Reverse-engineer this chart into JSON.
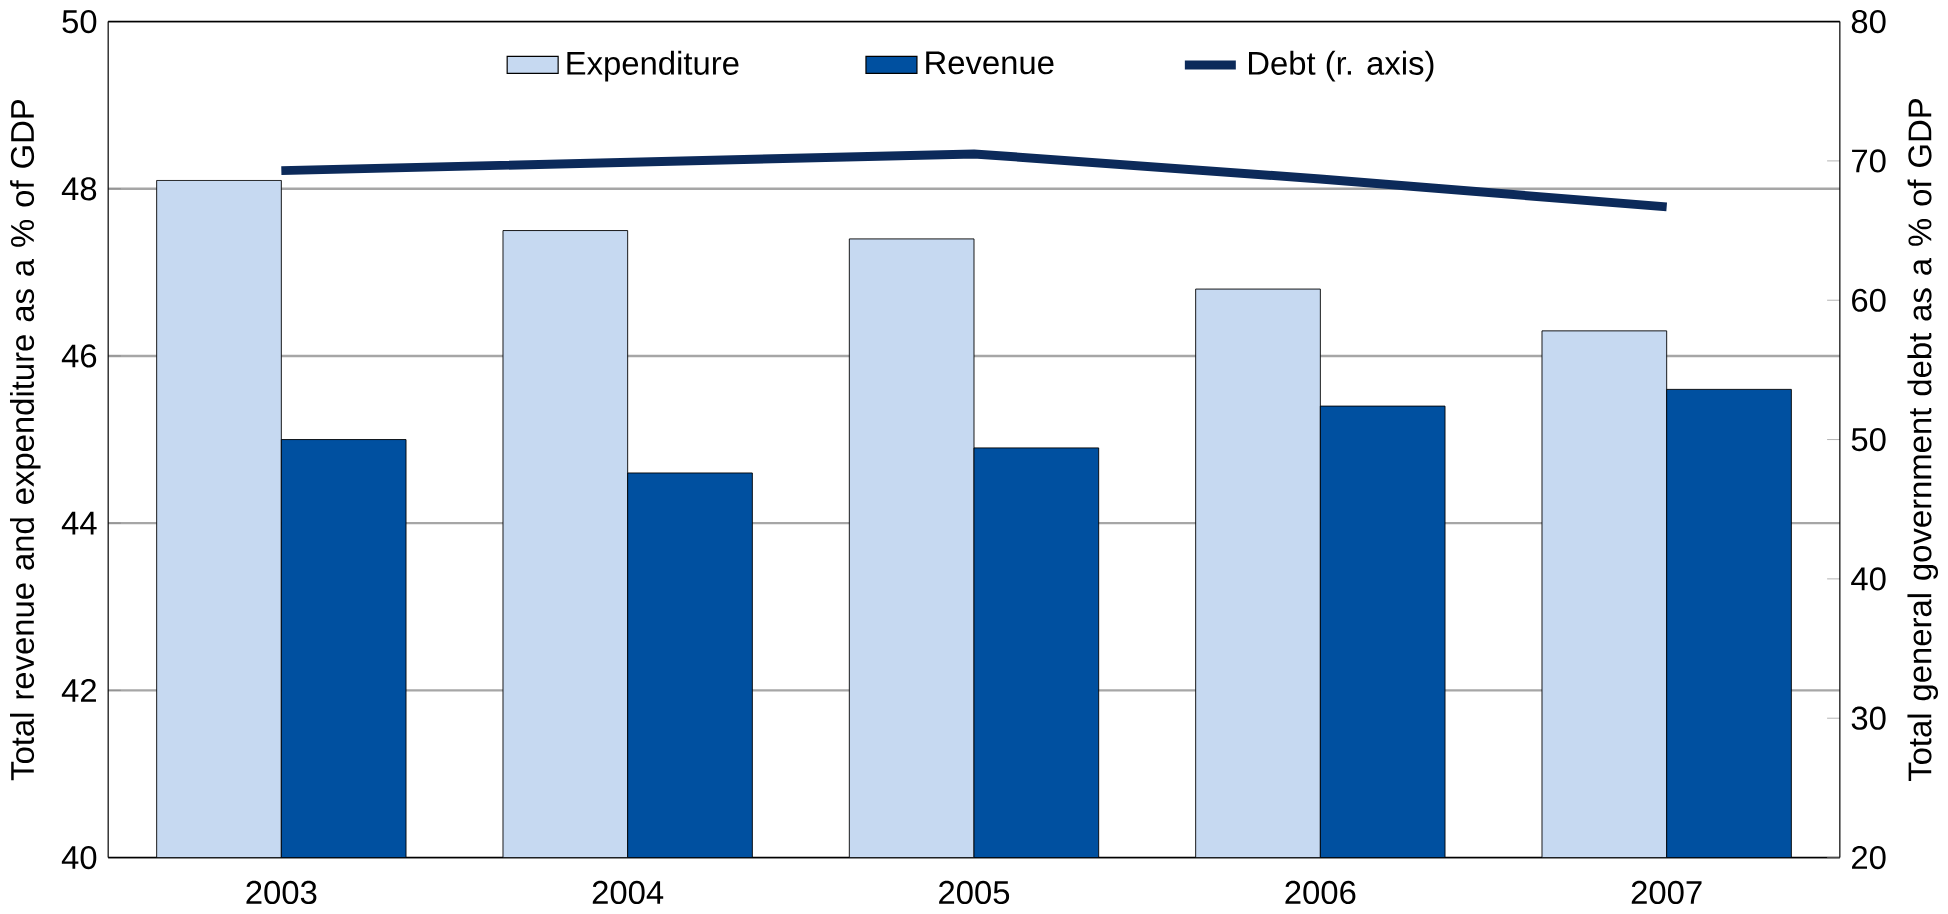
{
  "chart_data": {
    "type": "bar",
    "categories": [
      "2003",
      "2004",
      "2005",
      "2006",
      "2007"
    ],
    "series": [
      {
        "name": "Expenditure",
        "color": "#c6d9f1",
        "values": [
          48.1,
          47.5,
          47.4,
          46.8,
          46.3
        ]
      },
      {
        "name": "Revenue",
        "color": "#0050a0",
        "values": [
          45.0,
          44.6,
          44.9,
          45.4,
          45.6
        ]
      },
      {
        "name": "Debt (r. axis)",
        "type": "line",
        "axis": "y2",
        "color": "#0c2a5a",
        "values": [
          69.3,
          69.9,
          70.5,
          68.7,
          66.7
        ]
      }
    ],
    "ylabel": "Total revenue and expenditure as a % of GDP",
    "y2label": "Total general government debt as a % of GDP",
    "ylim": [
      40,
      50
    ],
    "yticks": [
      40,
      42,
      44,
      46,
      48,
      50
    ],
    "y2lim": [
      20,
      80
    ],
    "y2ticks": [
      20,
      30,
      40,
      50,
      60,
      70,
      80
    ],
    "grid": "y",
    "legend": "top",
    "marker": "none",
    "line_style": "solid"
  }
}
